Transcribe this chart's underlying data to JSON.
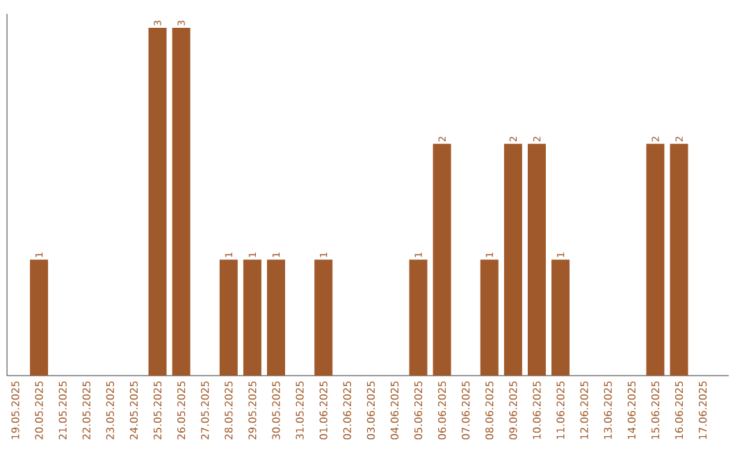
{
  "chart_data": {
    "type": "bar",
    "categories": [
      "19.05.2025",
      "20.05.2025",
      "21.05.2025",
      "22.05.2025",
      "23.05.2025",
      "24.05.2025",
      "25.05.2025",
      "26.05.2025",
      "27.05.2025",
      "28.05.2025",
      "29.05.2025",
      "30.05.2025",
      "31.05.2025",
      "01.06.2025",
      "02.06.2025",
      "03.06.2025",
      "04.06.2025",
      "05.06.2025",
      "06.06.2025",
      "07.06.2025",
      "08.06.2025",
      "09.06.2025",
      "10.06.2025",
      "11.06.2025",
      "12.06.2025",
      "13.06.2025",
      "14.06.2025",
      "15.06.2025",
      "16.06.2025",
      "17.06.2025"
    ],
    "values": [
      0,
      1,
      0,
      0,
      0,
      0,
      3,
      3,
      0,
      1,
      1,
      1,
      0,
      1,
      0,
      0,
      0,
      1,
      2,
      0,
      1,
      2,
      2,
      1,
      0,
      0,
      0,
      2,
      2,
      0
    ],
    "value_labels": [
      null,
      "1",
      null,
      null,
      null,
      null,
      "3",
      "3",
      null,
      "1",
      "1",
      "1",
      null,
      "1",
      null,
      null,
      null,
      "1",
      "2",
      null,
      "1",
      "2",
      "2",
      "1",
      null,
      null,
      null,
      "2",
      "2",
      null
    ],
    "color": "#a0592a",
    "relative": false
  }
}
